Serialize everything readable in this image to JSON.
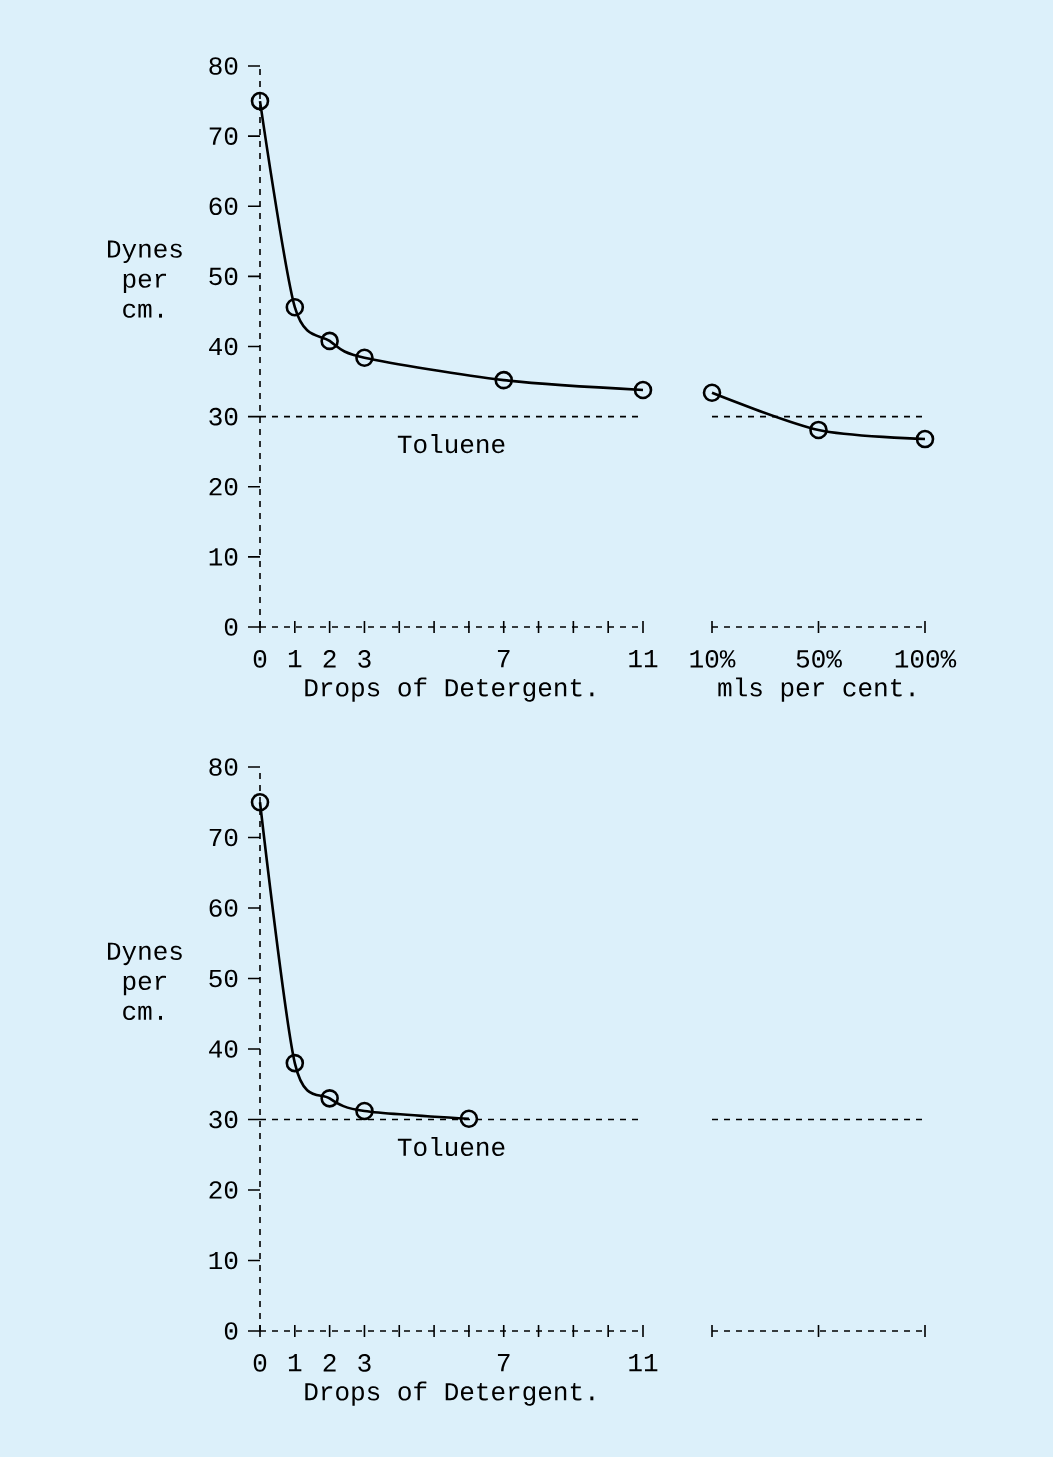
{
  "chart_data": [
    {
      "type": "line",
      "xlabel": "Drops of Detergent.",
      "ylabel": "Dynes per cm.",
      "marker": "circle",
      "line_style": "solid",
      "x": [
        0,
        1,
        2,
        3,
        7,
        11
      ],
      "series": [
        {
          "color": "#000000",
          "values": [
            75,
            45.6,
            40.8,
            38.4,
            35.2,
            33.8
          ]
        }
      ],
      "xlim": [
        0,
        11
      ],
      "ylim": [
        0,
        80
      ],
      "xticks": [
        0,
        1,
        2,
        3,
        {
          "value": 4,
          "label": null
        },
        {
          "value": 5,
          "label": null
        },
        {
          "value": 6,
          "label": null
        },
        7,
        {
          "value": 8,
          "label": null
        },
        {
          "value": 9,
          "label": null
        },
        {
          "value": 10,
          "label": null
        },
        11
      ],
      "yticks": [
        0,
        10,
        20,
        30,
        40,
        50,
        60,
        70,
        80
      ],
      "ref_lines": [
        {
          "axis": "y",
          "value": 30,
          "label": "Toluene",
          "line_style": "dashed"
        }
      ]
    },
    {
      "type": "line",
      "xlabel": "mls per cent.",
      "marker": "circle",
      "line_style": "solid",
      "categories": [
        "10%",
        "50%",
        "100%"
      ],
      "series": [
        {
          "color": "#000000",
          "values": [
            33.4,
            28.1,
            26.8
          ]
        }
      ],
      "ylim": [
        0,
        80
      ],
      "tick_labels": "x",
      "ref_lines": [
        {
          "axis": "y",
          "value": 30,
          "line_style": "dashed"
        }
      ]
    },
    {
      "type": "line",
      "xlabel": "Drops of Detergent.",
      "ylabel": "Dynes per cm.",
      "marker": "circle",
      "line_style": "solid",
      "x": [
        0,
        1,
        2,
        3,
        6
      ],
      "series": [
        {
          "color": "#000000",
          "values": [
            75,
            38.0,
            33.0,
            31.2,
            30.1
          ]
        }
      ],
      "xlim": [
        0,
        11
      ],
      "ylim": [
        0,
        80
      ],
      "xticks": [
        0,
        1,
        2,
        3,
        {
          "value": 4,
          "label": null
        },
        {
          "value": 5,
          "label": null
        },
        {
          "value": 6,
          "label": null
        },
        7,
        {
          "value": 8,
          "label": null
        },
        {
          "value": 9,
          "label": null
        },
        {
          "value": 10,
          "label": null
        },
        11
      ],
      "yticks": [
        0,
        10,
        20,
        30,
        40,
        50,
        60,
        70,
        80
      ],
      "ref_lines": [
        {
          "axis": "y",
          "value": 30,
          "label": "Toluene",
          "line_style": "dashed"
        }
      ]
    },
    {
      "type": "line",
      "categories": [
        null,
        null,
        null
      ],
      "values": [
        null,
        null,
        null
      ],
      "ylim": [
        0,
        80
      ],
      "tick_labels": false,
      "ref_lines": [
        {
          "axis": "y",
          "value": 30,
          "line_style": "dashed"
        }
      ]
    }
  ]
}
